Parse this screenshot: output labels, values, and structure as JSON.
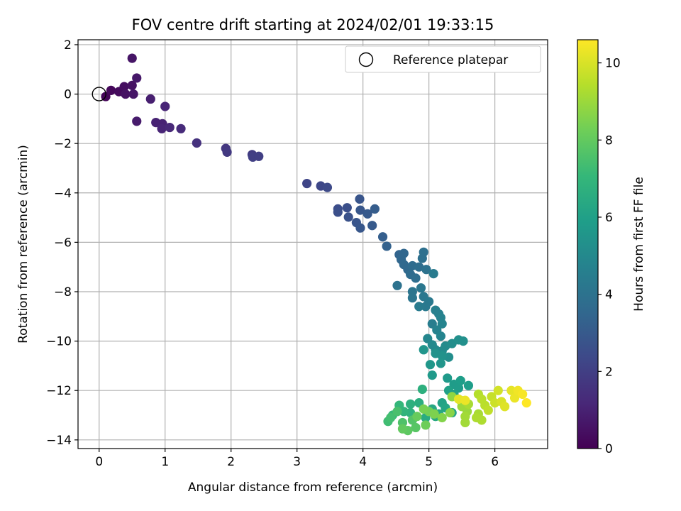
{
  "chart_data": {
    "type": "scatter",
    "title": "FOV centre drift starting at 2024/02/01 19:33:15",
    "xlabel": "Angular distance from reference (arcmin)",
    "ylabel": "Rotation from reference (arcmin)",
    "xlim": [
      -0.32,
      6.8
    ],
    "ylim": [
      -14.35,
      2.2
    ],
    "xticks": [
      0,
      1,
      2,
      3,
      4,
      5,
      6
    ],
    "yticks": [
      2,
      0,
      -2,
      -4,
      -6,
      -8,
      -10,
      -12,
      -14
    ],
    "xtick_labels": [
      "0",
      "1",
      "2",
      "3",
      "4",
      "5",
      "6"
    ],
    "ytick_labels": [
      "2",
      "0",
      "−2",
      "−4",
      "−6",
      "−8",
      "−10",
      "−12",
      "−14"
    ],
    "grid": true,
    "legend": {
      "position": "top-right",
      "entries": [
        {
          "label": "Reference platepar",
          "marker": "open-circle",
          "x": 0,
          "y": 0
        }
      ]
    },
    "colorbar": {
      "label": "Hours from first FF file",
      "range": [
        0,
        10.6
      ],
      "ticks": [
        0,
        2,
        4,
        6,
        8,
        10
      ],
      "tick_labels": [
        "0",
        "2",
        "4",
        "6",
        "8",
        "10"
      ],
      "colormap": "viridis",
      "colormap_stops": [
        "#440154",
        "#482878",
        "#3e4989",
        "#31688e",
        "#26828e",
        "#1f9e89",
        "#35b779",
        "#6ece58",
        "#b5de2b",
        "#fde725"
      ]
    },
    "series": [
      {
        "marker": "filled-circle",
        "points": [
          [
            0.1,
            -0.1,
            0.1
          ],
          [
            0.18,
            0.15,
            0.2
          ],
          [
            0.3,
            0.1,
            0.3
          ],
          [
            0.38,
            0.3,
            0.4
          ],
          [
            0.4,
            0.0,
            0.5
          ],
          [
            0.5,
            0.35,
            0.5
          ],
          [
            0.5,
            1.45,
            0.6
          ],
          [
            0.52,
            0.0,
            0.6
          ],
          [
            0.57,
            0.65,
            0.7
          ],
          [
            0.57,
            -1.1,
            0.8
          ],
          [
            0.78,
            -0.2,
            0.9
          ],
          [
            0.86,
            -1.15,
            1.0
          ],
          [
            0.96,
            -1.2,
            1.0
          ],
          [
            0.95,
            -1.4,
            1.1
          ],
          [
            1.0,
            -0.5,
            1.1
          ],
          [
            1.07,
            -1.35,
            1.2
          ],
          [
            1.24,
            -1.4,
            1.3
          ],
          [
            1.48,
            -1.98,
            1.5
          ],
          [
            1.92,
            -2.2,
            1.7
          ],
          [
            1.94,
            -2.35,
            1.8
          ],
          [
            2.32,
            -2.45,
            1.9
          ],
          [
            2.33,
            -2.55,
            2.0
          ],
          [
            2.42,
            -2.52,
            2.0
          ],
          [
            3.15,
            -3.62,
            2.2
          ],
          [
            3.36,
            -3.72,
            2.3
          ],
          [
            3.46,
            -3.78,
            2.4
          ],
          [
            3.62,
            -4.65,
            2.5
          ],
          [
            3.62,
            -4.78,
            2.6
          ],
          [
            3.76,
            -4.6,
            2.6
          ],
          [
            3.78,
            -4.98,
            2.7
          ],
          [
            3.9,
            -5.2,
            2.8
          ],
          [
            3.95,
            -4.25,
            2.8
          ],
          [
            3.96,
            -5.42,
            2.9
          ],
          [
            3.96,
            -4.7,
            2.9
          ],
          [
            4.07,
            -4.85,
            3.0
          ],
          [
            4.14,
            -5.32,
            3.0
          ],
          [
            4.18,
            -4.65,
            3.1
          ],
          [
            4.3,
            -5.78,
            3.2
          ],
          [
            4.36,
            -6.16,
            3.3
          ],
          [
            4.55,
            -6.5,
            3.4
          ],
          [
            4.58,
            -6.7,
            3.5
          ],
          [
            4.62,
            -6.45,
            3.5
          ],
          [
            4.62,
            -6.9,
            3.6
          ],
          [
            4.68,
            -7.1,
            3.6
          ],
          [
            4.72,
            -7.3,
            3.7
          ],
          [
            4.75,
            -6.95,
            3.7
          ],
          [
            4.8,
            -7.45,
            3.8
          ],
          [
            4.85,
            -7.0,
            3.8
          ],
          [
            4.9,
            -6.65,
            3.9
          ],
          [
            4.92,
            -6.4,
            3.9
          ],
          [
            4.96,
            -7.1,
            4.0
          ],
          [
            4.52,
            -7.75,
            4.0
          ],
          [
            4.75,
            -8.0,
            4.1
          ],
          [
            4.75,
            -8.25,
            4.1
          ],
          [
            4.88,
            -7.85,
            4.2
          ],
          [
            4.92,
            -8.2,
            4.2
          ],
          [
            4.95,
            -8.6,
            4.3
          ],
          [
            5.0,
            -8.4,
            4.3
          ],
          [
            4.85,
            -8.6,
            4.4
          ],
          [
            5.07,
            -7.27,
            4.4
          ],
          [
            5.05,
            -9.3,
            4.5
          ],
          [
            5.1,
            -8.75,
            4.6
          ],
          [
            5.15,
            -8.9,
            4.6
          ],
          [
            5.18,
            -9.05,
            4.7
          ],
          [
            5.12,
            -9.55,
            4.7
          ],
          [
            5.18,
            -9.8,
            4.8
          ],
          [
            5.2,
            -9.3,
            4.8
          ],
          [
            4.98,
            -9.9,
            4.9
          ],
          [
            5.05,
            -10.15,
            5.0
          ],
          [
            5.1,
            -10.35,
            5.0
          ],
          [
            5.2,
            -10.4,
            5.1
          ],
          [
            5.25,
            -10.2,
            5.1
          ],
          [
            5.3,
            -10.65,
            5.2
          ],
          [
            5.35,
            -10.1,
            5.2
          ],
          [
            5.45,
            -9.95,
            5.3
          ],
          [
            5.52,
            -10.0,
            5.3
          ],
          [
            5.1,
            -10.5,
            5.4
          ],
          [
            5.2,
            -10.6,
            5.4
          ],
          [
            4.92,
            -10.35,
            5.5
          ],
          [
            5.18,
            -10.9,
            5.5
          ],
          [
            5.02,
            -10.95,
            5.6
          ],
          [
            5.05,
            -11.38,
            5.7
          ],
          [
            5.28,
            -11.5,
            5.7
          ],
          [
            5.38,
            -11.75,
            5.8
          ],
          [
            5.45,
            -11.9,
            5.8
          ],
          [
            5.6,
            -11.8,
            5.9
          ],
          [
            5.48,
            -11.6,
            5.9
          ],
          [
            5.3,
            -12.0,
            6.0
          ],
          [
            5.38,
            -12.15,
            6.0
          ],
          [
            5.2,
            -12.5,
            6.1
          ],
          [
            5.25,
            -12.7,
            6.2
          ],
          [
            5.35,
            -12.9,
            6.2
          ],
          [
            5.15,
            -12.95,
            6.3
          ],
          [
            5.05,
            -12.75,
            6.3
          ],
          [
            5.1,
            -13.05,
            6.4
          ],
          [
            4.95,
            -13.1,
            6.5
          ],
          [
            4.85,
            -12.5,
            6.6
          ],
          [
            4.9,
            -11.95,
            6.7
          ],
          [
            4.72,
            -12.55,
            6.7
          ],
          [
            4.72,
            -12.9,
            6.8
          ],
          [
            4.62,
            -12.85,
            6.9
          ],
          [
            4.55,
            -12.6,
            7.0
          ],
          [
            4.45,
            -13.0,
            7.1
          ],
          [
            4.38,
            -13.25,
            7.3
          ],
          [
            4.42,
            -13.1,
            7.4
          ],
          [
            4.52,
            -12.85,
            7.5
          ],
          [
            4.6,
            -13.3,
            7.6
          ],
          [
            4.75,
            -13.2,
            7.7
          ],
          [
            4.8,
            -13.5,
            7.8
          ],
          [
            4.68,
            -13.62,
            7.9
          ],
          [
            4.6,
            -13.55,
            8.0
          ],
          [
            4.82,
            -13.05,
            8.1
          ],
          [
            4.95,
            -13.4,
            8.2
          ],
          [
            5.0,
            -12.85,
            8.3
          ],
          [
            4.92,
            -12.75,
            8.4
          ],
          [
            5.08,
            -12.95,
            8.5
          ],
          [
            5.2,
            -13.1,
            8.6
          ],
          [
            5.32,
            -12.9,
            8.7
          ],
          [
            5.35,
            -12.25,
            8.8
          ],
          [
            5.48,
            -12.4,
            8.9
          ],
          [
            5.5,
            -12.65,
            9.0
          ],
          [
            5.58,
            -12.85,
            9.0
          ],
          [
            5.55,
            -13.05,
            9.1
          ],
          [
            5.55,
            -13.3,
            9.1
          ],
          [
            5.6,
            -12.55,
            9.2
          ],
          [
            5.75,
            -12.95,
            9.2
          ],
          [
            5.8,
            -13.2,
            9.3
          ],
          [
            5.72,
            -13.1,
            9.3
          ],
          [
            5.75,
            -12.15,
            9.4
          ],
          [
            5.8,
            -12.35,
            9.5
          ],
          [
            5.85,
            -12.6,
            9.5
          ],
          [
            5.9,
            -12.8,
            9.6
          ],
          [
            5.95,
            -12.25,
            9.7
          ],
          [
            6.0,
            -12.5,
            9.8
          ],
          [
            6.05,
            -12.0,
            9.9
          ],
          [
            6.1,
            -12.45,
            10.0
          ],
          [
            6.15,
            -12.65,
            10.1
          ],
          [
            6.25,
            -12.0,
            10.2
          ],
          [
            6.3,
            -12.3,
            10.3
          ],
          [
            6.35,
            -12.0,
            10.4
          ],
          [
            6.42,
            -12.15,
            10.5
          ],
          [
            6.48,
            -12.5,
            10.6
          ],
          [
            5.45,
            -12.35,
            10.2
          ],
          [
            5.55,
            -12.4,
            10.3
          ]
        ]
      }
    ]
  }
}
